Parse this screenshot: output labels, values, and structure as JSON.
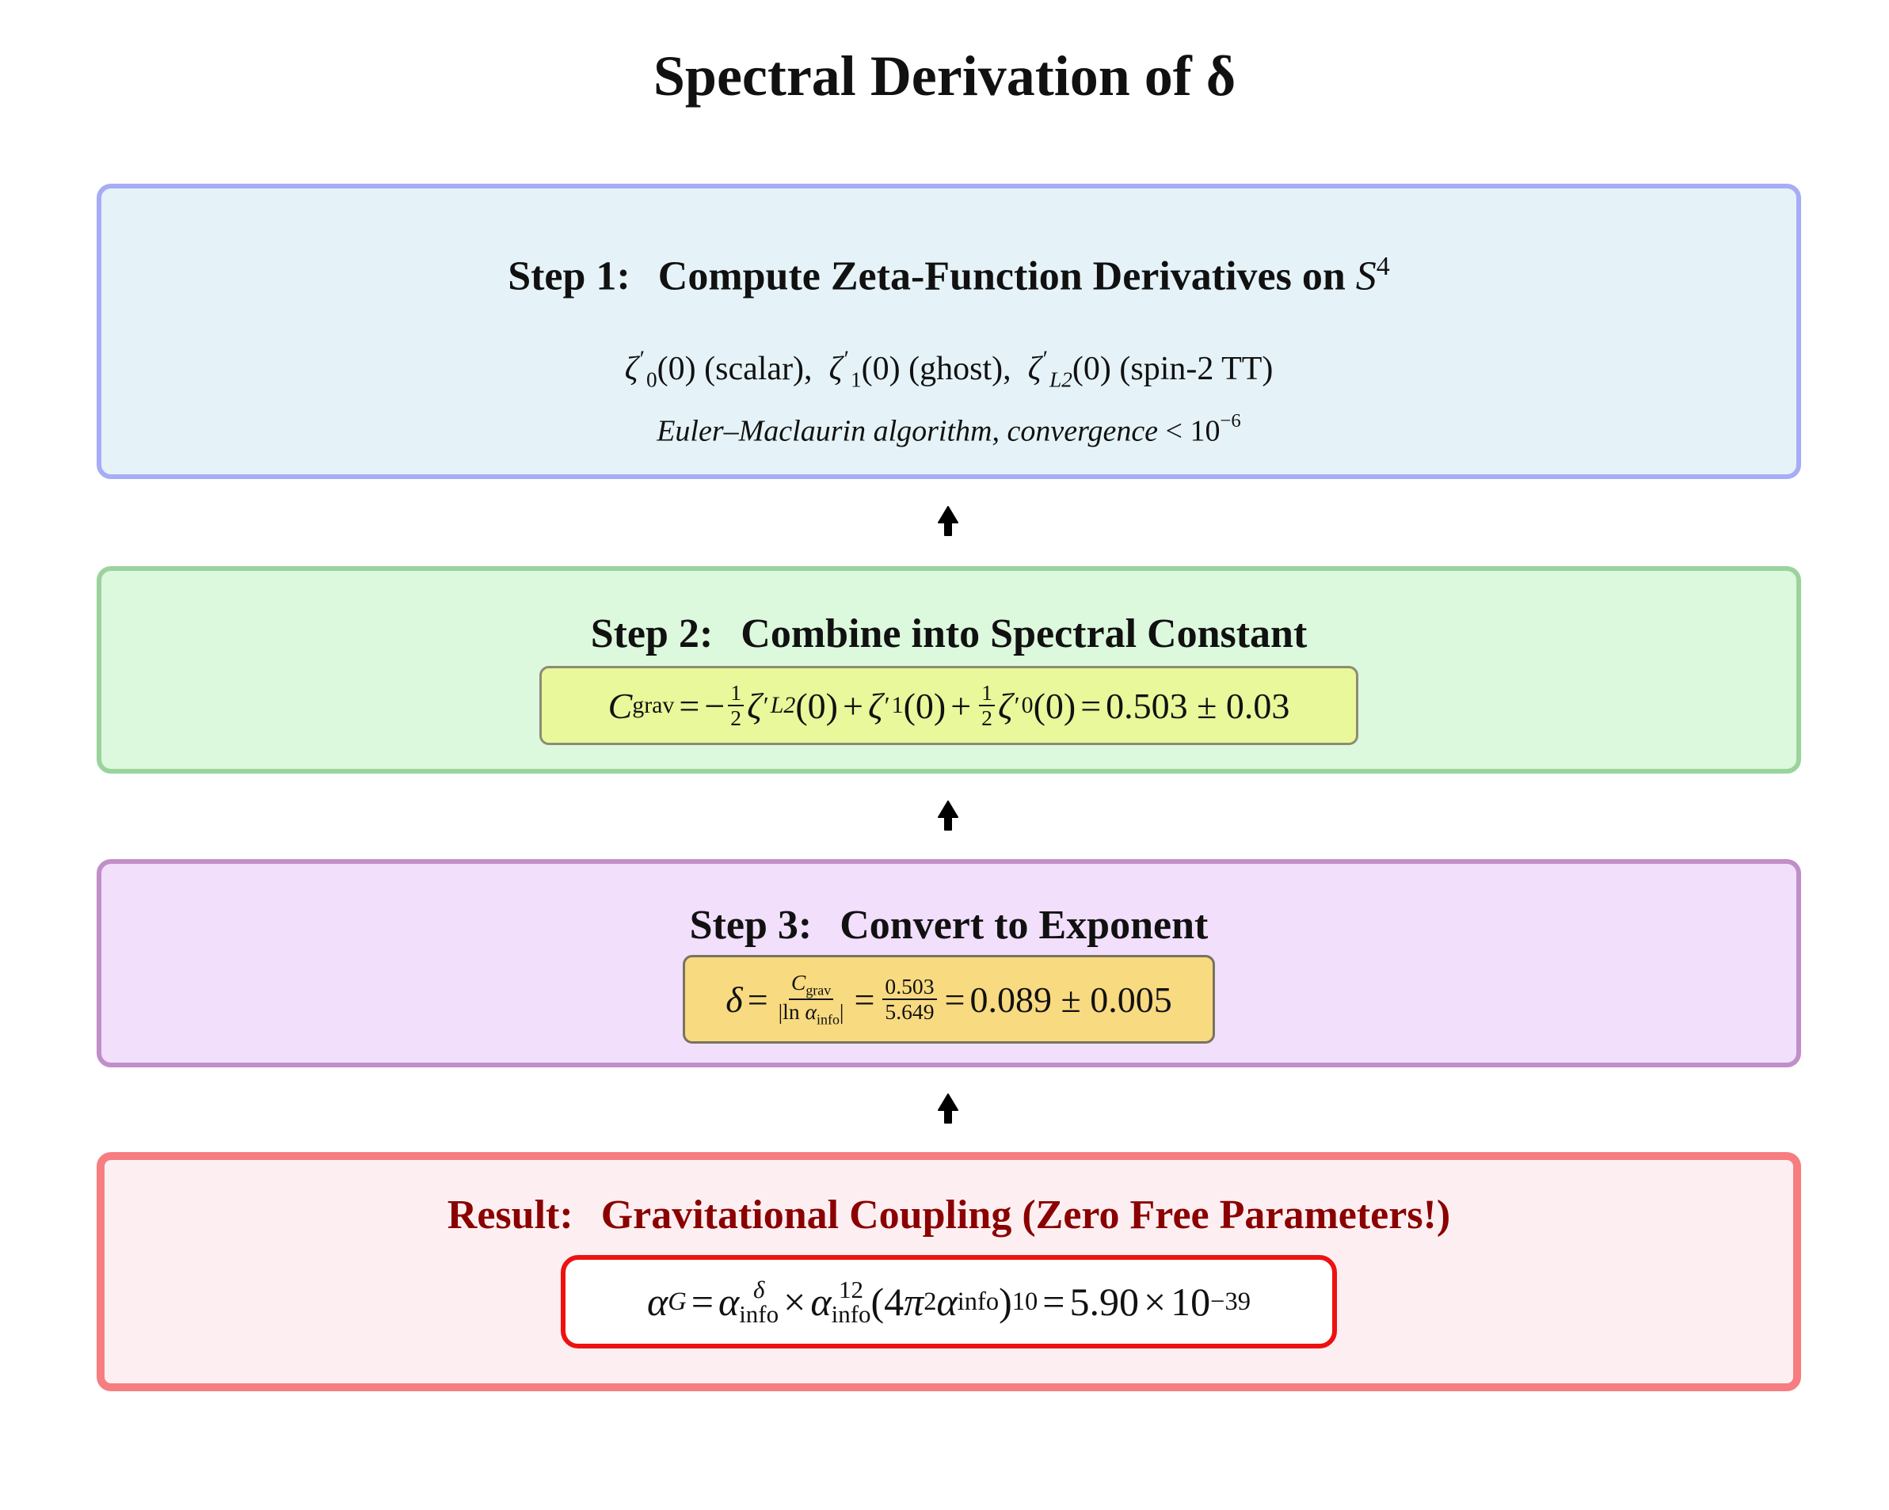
{
  "title": "Spectral Derivation of δ",
  "step1": {
    "label": "Step 1",
    "heading": "Compute Zeta-Function Derivatives on",
    "heading_symbol": "S",
    "heading_exp": "4",
    "items": [
      "(0) (scalar),",
      "(0) (ghost),",
      "(0) (spin-2 TT)"
    ],
    "subs": [
      "0",
      "1",
      "L2"
    ],
    "note": "Euler–Maclaurin algorithm, convergence",
    "note_bound": "< 10",
    "note_exp": "−6"
  },
  "step2": {
    "label": "Step 2",
    "heading": "Combine into Spectral Constant",
    "lhs": "C",
    "lhs_sub": "grav",
    "value": "0.503 ± 0.03"
  },
  "step3": {
    "label": "Step 3",
    "heading": "Convert to Exponent",
    "num_value": "0.503",
    "den_value": "5.649",
    "value": "0.089 ± 0.005"
  },
  "result": {
    "label": "Result",
    "heading": "Gravitational Coupling (Zero Free Parameters!)",
    "exp12": "12",
    "exp10": "10",
    "value": "5.90",
    "value_exp": "−39"
  }
}
